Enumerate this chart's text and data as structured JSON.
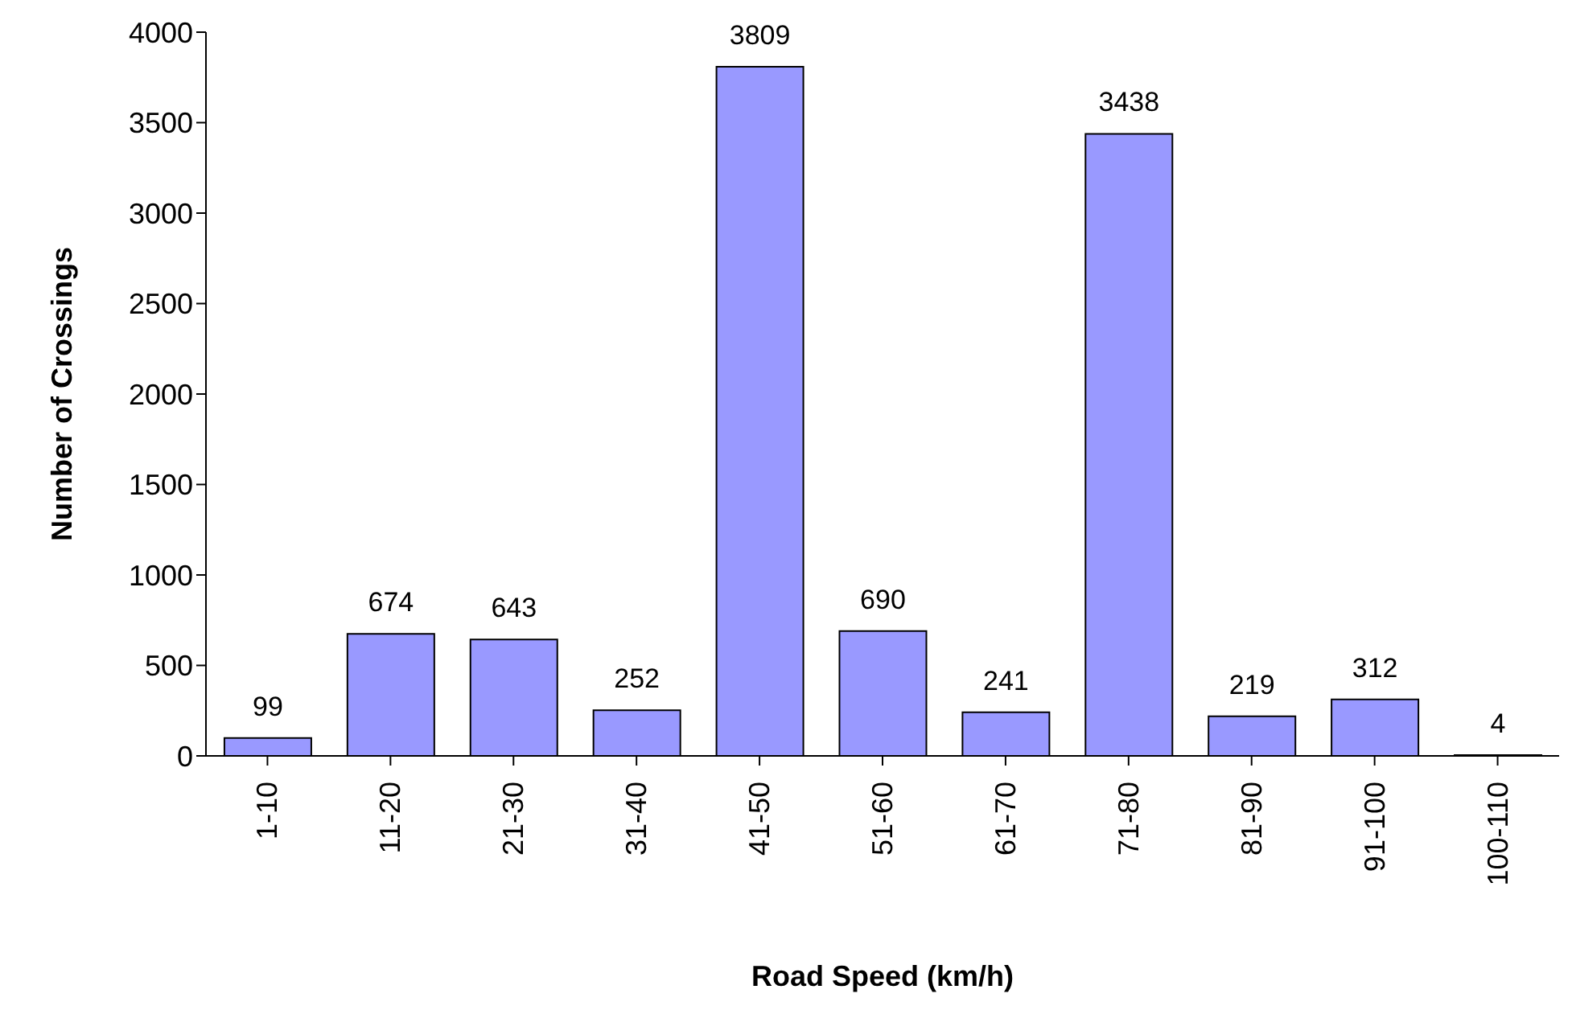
{
  "chart_data": {
    "type": "bar",
    "xlabel": "Road Speed (km/h)",
    "ylabel": "Number of Crossings",
    "categories": [
      "1-10",
      "11-20",
      "21-30",
      "31-40",
      "41-50",
      "51-60",
      "61-70",
      "71-80",
      "81-90",
      "91-100",
      "100-110"
    ],
    "values": [
      99,
      674,
      643,
      252,
      3809,
      690,
      241,
      3438,
      219,
      312,
      4
    ],
    "color": "#9999ff",
    "ylim": [
      0,
      4000
    ],
    "yticks": [
      0,
      500,
      1000,
      1500,
      2000,
      2500,
      3000,
      3500,
      4000
    ],
    "grid": false,
    "data_labels": true
  }
}
